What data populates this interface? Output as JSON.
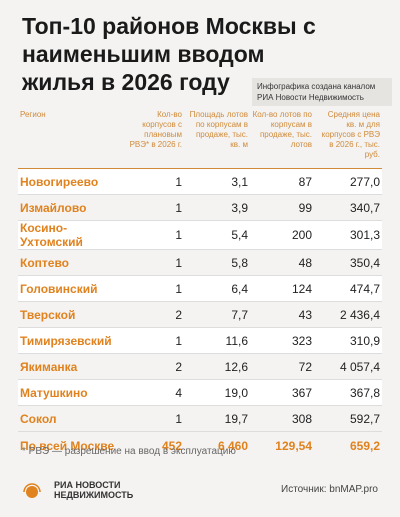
{
  "header": {
    "title": "Топ-10 районов Москвы с наименьшим вводом жилья в 2026 году",
    "note": "Инфографика создана каналом РИА Новости Недвижимость"
  },
  "table": {
    "columns": [
      "Регион",
      "Кол-во корпусов с плановым РВЭ* в 2026 г.",
      "Площадь лотов по корпусам в продаже, тыс. кв. м",
      "Кол-во лотов по корпусам в продаже, тыс. лотов",
      "Средняя цена кв. м для корпусов с РВЭ в 2026 г., тыс. руб."
    ],
    "rows": [
      [
        "Новогиреево",
        "1",
        "3,1",
        "87",
        "277,0"
      ],
      [
        "Измайлово",
        "1",
        "3,9",
        "99",
        "340,7"
      ],
      [
        "Косино-Ухтомский",
        "1",
        "5,4",
        "200",
        "301,3"
      ],
      [
        "Коптево",
        "1",
        "5,8",
        "48",
        "350,4"
      ],
      [
        "Головинский",
        "1",
        "6,4",
        "124",
        "474,7"
      ],
      [
        "Тверской",
        "2",
        "7,7",
        "43",
        "2 436,4"
      ],
      [
        "Тимирязевский",
        "1",
        "11,6",
        "323",
        "310,9"
      ],
      [
        "Якиманка",
        "2",
        "12,6",
        "72",
        "4 057,4"
      ],
      [
        "Матушкино",
        "4",
        "19,0",
        "367",
        "367,8"
      ],
      [
        "Сокол",
        "1",
        "19,7",
        "308",
        "592,7"
      ]
    ],
    "total": [
      "По всей Москве",
      "452",
      "6 460",
      "129,54",
      "659,2"
    ]
  },
  "footer": {
    "footnote": "* РВЭ — разрешение на ввод в эксплуатацию",
    "logo_line1": "РИА НОВОСТИ",
    "logo_line2": "НЕДВИЖИМОСТЬ",
    "source": "Источник: bnMAP.pro"
  }
}
